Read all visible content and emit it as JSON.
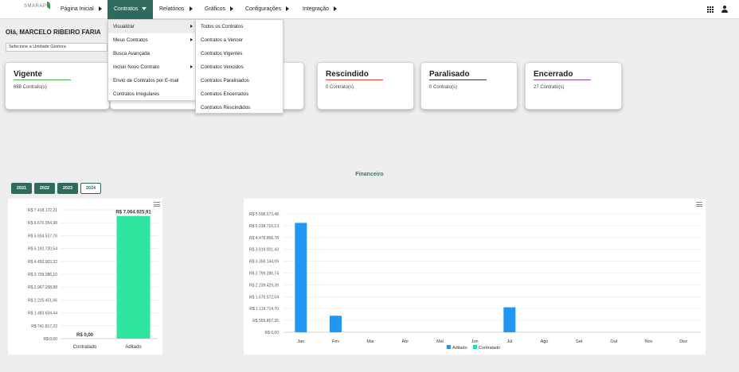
{
  "brand": {
    "logo_text": "SMARAPD"
  },
  "nav": {
    "items": [
      {
        "label": "Página Inicial"
      },
      {
        "label": "Contratos"
      },
      {
        "label": "Relatórios"
      },
      {
        "label": "Gráficos"
      },
      {
        "label": "Configurações"
      },
      {
        "label": "Integração"
      }
    ],
    "icons": [
      "apps-grid-icon",
      "user-icon"
    ]
  },
  "greeting": "Olá, MARCELO RIBEIRO FARIA",
  "unit_select": {
    "value": "Selecione a Unidade Gestora"
  },
  "contratos_menu": {
    "items": [
      {
        "label": "Visualizar",
        "submenu": true
      },
      {
        "label": "Meus Contratos",
        "submenu": true
      },
      {
        "label": "Busca Avançada",
        "submenu": false
      },
      {
        "label": "Incluir Novo Contrato",
        "submenu": true
      },
      {
        "label": "Envio de Contratos por E-mail",
        "submenu": false
      },
      {
        "label": "Contratos Irregulares",
        "submenu": false
      }
    ]
  },
  "visualizar_menu": {
    "items": [
      {
        "label": "Todos os Contratos"
      },
      {
        "label": "Contratos a Vencer"
      },
      {
        "label": "Contratos Vigentes"
      },
      {
        "label": "Contratos Vencidos"
      },
      {
        "label": "Contratos Paralisados"
      },
      {
        "label": "Contratos Encerrados"
      },
      {
        "label": "Contratos Rescindidos"
      }
    ]
  },
  "cards": [
    {
      "title": "Vigente",
      "count": "688 Contrato(s)",
      "color": "#4caf50"
    },
    {
      "title": "Rescindido",
      "count": "0 Contrato(s)",
      "color": "#e53935"
    },
    {
      "title": "Paralisado",
      "count": "0 Contrato(s)",
      "color": "#333333"
    },
    {
      "title": "Encerrado",
      "count": "27 Contrato(s)",
      "color": "#8e44ad"
    }
  ],
  "financeiro": {
    "title": "Financeiro",
    "years": [
      "2021",
      "2022",
      "2023",
      "2024"
    ],
    "selected_year": "2024"
  },
  "colors": {
    "primary": "#2e6b5c",
    "aditado": "#2196f3",
    "contratado": "#22e0a0",
    "bar_green": "#2ee5a0"
  },
  "chart_data": [
    {
      "type": "bar",
      "categories": [
        "Contratado",
        "Aditado"
      ],
      "values": [
        0,
        7064925.91
      ],
      "data_labels": [
        "R$ 0,00",
        "R$ 7.064.925,91"
      ],
      "yticks": [
        "R$ 0,00",
        "R$ 741.817,22",
        "R$ 1.483.634,44",
        "R$ 2.225.451,66",
        "R$ 2.967.268,88",
        "R$ 3.709.086,10",
        "R$ 4.450.903,32",
        "R$ 5.192.720,54",
        "R$ 5.934.537,76",
        "R$ 6.676.354,98",
        "R$ 7.418.172,21"
      ],
      "ylim": [
        0,
        7418172.21
      ],
      "colors": [
        "#2ee5a0",
        "#2ee5a0"
      ],
      "grid": true
    },
    {
      "type": "bar",
      "categories": [
        "Jan",
        "Fev",
        "Mar",
        "Abr",
        "Mai",
        "Jun",
        "Jul",
        "Ago",
        "Set",
        "Out",
        "Nov",
        "Dez"
      ],
      "series": [
        {
          "name": "Aditado",
          "values": [
            5170000,
            780000,
            0,
            0,
            0,
            0,
            1180000,
            0,
            0,
            0,
            0,
            0
          ]
        },
        {
          "name": "Contratado",
          "values": [
            0,
            0,
            0,
            0,
            0,
            0,
            0,
            0,
            0,
            0,
            0,
            0
          ]
        }
      ],
      "yticks": [
        "R$ 0,00",
        "R$ 559.857,35",
        "R$ 1.119.714,70",
        "R$ 1.679.572,04",
        "R$ 2.239.429,39",
        "R$ 2.799.286,74",
        "R$ 3.359.144,09",
        "R$ 3.919.001,43",
        "R$ 4.478.858,78",
        "R$ 5.038.716,13",
        "R$ 5.598.573,48"
      ],
      "ylim": [
        0,
        5598573.48
      ],
      "legend": "bottom",
      "grid": true
    }
  ]
}
